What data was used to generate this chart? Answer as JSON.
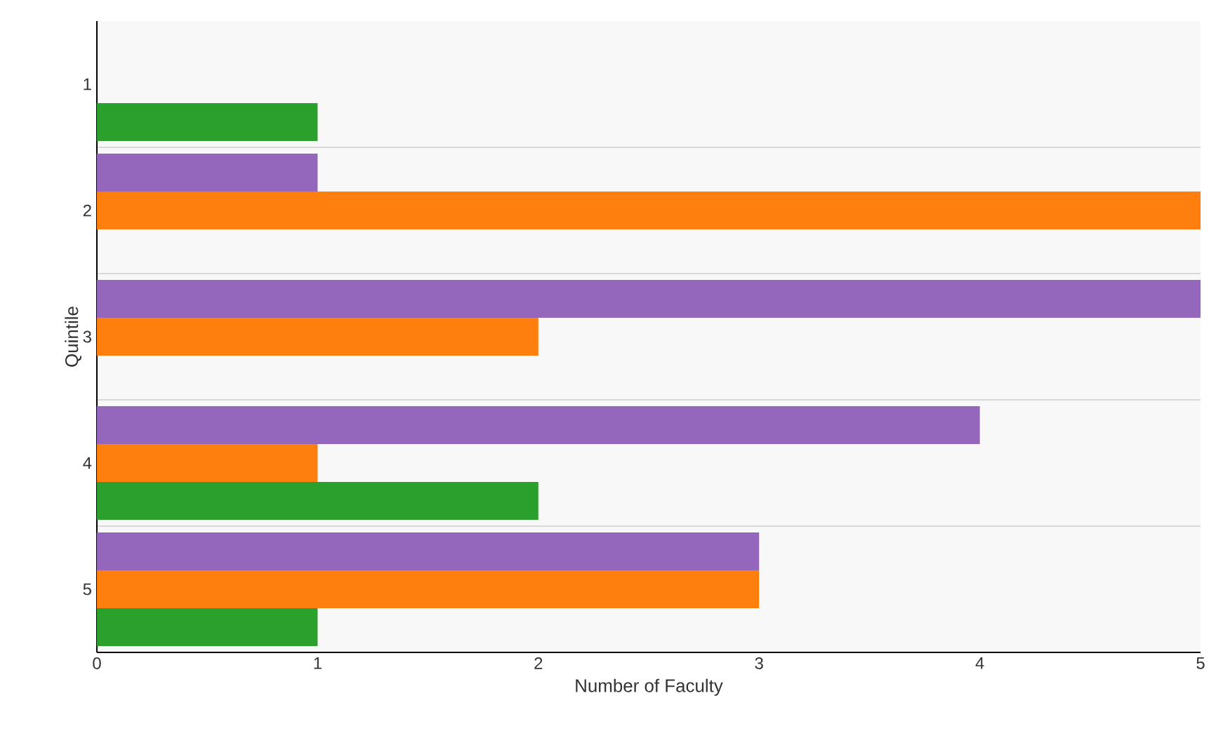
{
  "chart_data": {
    "type": "bar",
    "orientation": "horizontal",
    "xlabel": "Number of Faculty",
    "ylabel": "Quintile",
    "categories": [
      "1",
      "2",
      "3",
      "4",
      "5"
    ],
    "series": [
      {
        "color": "#9467bd",
        "values": [
          null,
          1,
          5,
          4,
          3
        ]
      },
      {
        "color": "#ff7f0e",
        "values": [
          null,
          5,
          2,
          1,
          3
        ]
      },
      {
        "color": "#2ca02c",
        "values": [
          1,
          null,
          null,
          2,
          1
        ]
      }
    ],
    "xlim": [
      0,
      5
    ],
    "xticks": [
      0,
      1,
      2,
      3,
      4,
      5
    ],
    "grid": "y"
  }
}
